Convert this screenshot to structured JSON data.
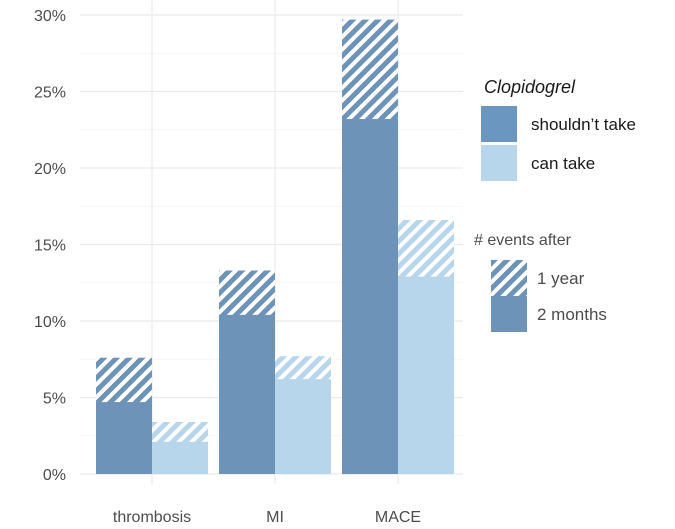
{
  "chart_data": {
    "type": "bar",
    "title": "",
    "xlabel": "",
    "ylabel": "",
    "ylim": [
      0,
      30
    ],
    "y_ticks": [
      "0%",
      "5%",
      "10%",
      "15%",
      "20%",
      "25%",
      "30%"
    ],
    "y_tick_values": [
      0,
      5,
      10,
      15,
      20,
      25,
      30
    ],
    "categories": [
      "thrombosis",
      "MI",
      "MACE"
    ],
    "grid": true,
    "series": [
      {
        "name": "shouldn’t take",
        "group": "Clopidogrel",
        "two_months": [
          4.7,
          10.4,
          23.2
        ],
        "one_year": [
          7.6,
          13.3,
          29.7
        ],
        "color": "#6e93b8"
      },
      {
        "name": "can take",
        "group": "Clopidogrel",
        "two_months": [
          2.1,
          6.2,
          12.9
        ],
        "one_year": [
          3.4,
          7.7,
          16.6
        ],
        "color": "#b8d6eb"
      }
    ],
    "legend": {
      "placement": "right",
      "fill_title": "Clopidogrel",
      "fill_items": [
        "shouldn’t take",
        "can take"
      ],
      "pattern_title": "# events after",
      "pattern_items": [
        "1 year",
        "2 months"
      ]
    }
  },
  "colors": {
    "dark": "#6e93b8",
    "light": "#b8d6eb",
    "legend_dark": "#6a96c0",
    "grid": "#ebebeb"
  }
}
